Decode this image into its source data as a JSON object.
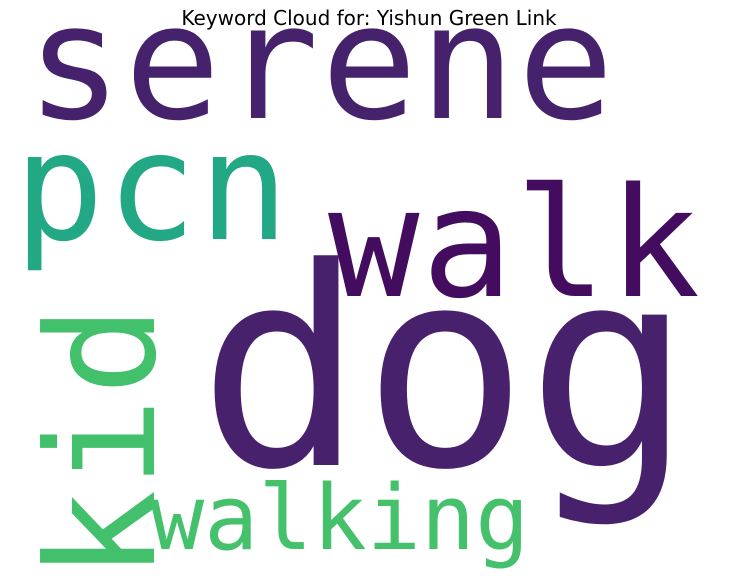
{
  "title": "Keyword Cloud for: Yishun Green Link",
  "words": [
    {
      "text": "serene",
      "color": "#45226b"
    },
    {
      "text": "pcn",
      "color": "#22a884"
    },
    {
      "text": "walk",
      "color": "#440c5e"
    },
    {
      "text": "dog",
      "color": "#47216c"
    },
    {
      "text": "kid",
      "color": "#43c06b"
    },
    {
      "text": "walking",
      "color": "#45c16c"
    }
  ]
}
